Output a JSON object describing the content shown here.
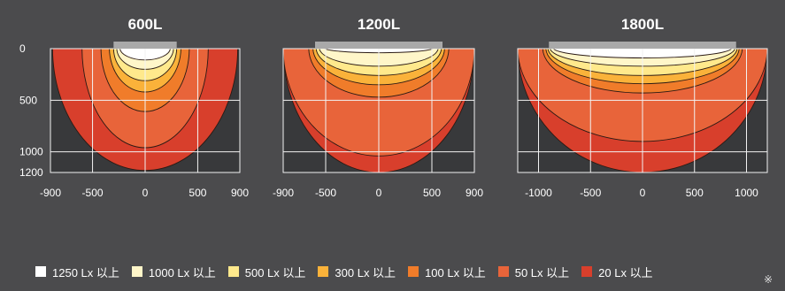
{
  "chart_data": {
    "type": "heatmap",
    "panels": [
      {
        "title": "600L",
        "x_ticks": [
          "-900",
          "-500",
          "0",
          "500",
          "900"
        ],
        "x_values": [
          -900,
          -500,
          0,
          500,
          900
        ],
        "y_ticks": [
          "0",
          "500",
          "1000",
          "1200"
        ],
        "y_values": [
          0,
          500,
          1000,
          1200
        ],
        "xlim": [
          -900,
          900
        ],
        "ylim": [
          0,
          1200
        ],
        "grid": true,
        "luminaire_width": 600,
        "contours": [
          {
            "level": "20 Lx 以上",
            "half_width": 880,
            "depth": 1180
          },
          {
            "level": "50 Lx 以上",
            "half_width": 600,
            "depth": 960
          },
          {
            "level": "100 Lx 以上",
            "half_width": 420,
            "depth": 610
          },
          {
            "level": "300 Lx 以上",
            "half_width": 340,
            "depth": 420
          },
          {
            "level": "500 Lx 以上",
            "half_width": 300,
            "depth": 310
          },
          {
            "level": "1000 Lx 以上",
            "half_width": 270,
            "depth": 200
          },
          {
            "level": "1250 Lx 以上",
            "half_width": 240,
            "depth": 110
          }
        ]
      },
      {
        "title": "1200L",
        "x_ticks": [
          "-900",
          "-500",
          "0",
          "500",
          "900"
        ],
        "x_values": [
          -900,
          -500,
          0,
          500,
          900
        ],
        "xlim": [
          -900,
          900
        ],
        "ylim": [
          0,
          1200
        ],
        "grid": true,
        "luminaire_width": 1200,
        "contours": [
          {
            "level": "20 Lx 以上",
            "half_width": 900,
            "depth": 1200
          },
          {
            "level": "50 Lx 以上",
            "half_width": 900,
            "depth": 1040
          },
          {
            "level": "100 Lx 以上",
            "half_width": 660,
            "depth": 470
          },
          {
            "level": "300 Lx 以上",
            "half_width": 620,
            "depth": 350
          },
          {
            "level": "500 Lx 以上",
            "half_width": 590,
            "depth": 260
          },
          {
            "level": "1000 Lx 以上",
            "half_width": 560,
            "depth": 170
          },
          {
            "level": "1250 Lx 以上",
            "half_width": 520,
            "depth": 40
          }
        ]
      },
      {
        "title": "1800L",
        "x_ticks": [
          "-1000",
          "-500",
          "0",
          "500",
          "1000"
        ],
        "x_values": [
          -1000,
          -500,
          0,
          500,
          1000
        ],
        "xlim": [
          -1200,
          1200
        ],
        "ylim": [
          0,
          1200
        ],
        "grid": true,
        "luminaire_width": 1800,
        "contours": [
          {
            "level": "20 Lx 以上",
            "half_width": 1200,
            "depth": 1200
          },
          {
            "level": "50 Lx 以上",
            "half_width": 1200,
            "depth": 900
          },
          {
            "level": "100 Lx 以上",
            "half_width": 960,
            "depth": 430
          },
          {
            "level": "300 Lx 以上",
            "half_width": 930,
            "depth": 340
          },
          {
            "level": "500 Lx 以上",
            "half_width": 910,
            "depth": 260
          },
          {
            "level": "1000 Lx 以上",
            "half_width": 890,
            "depth": 170
          },
          {
            "level": "1250 Lx 以上",
            "half_width": 860,
            "depth": 90
          }
        ]
      }
    ],
    "legend": [
      {
        "label": "1250 Lx 以上",
        "color": "#ffffff"
      },
      {
        "label": "1000 Lx 以上",
        "color": "#fff6c9"
      },
      {
        "label": "500 Lx 以上",
        "color": "#ffe98c"
      },
      {
        "label": "300 Lx 以上",
        "color": "#fab23a"
      },
      {
        "label": "100 Lx 以上",
        "color": "#f07c2a"
      },
      {
        "label": "50 Lx 以上",
        "color": "#e8643a"
      },
      {
        "label": "20 Lx 以上",
        "color": "#d83f2c"
      }
    ],
    "legend_position": "bottom",
    "note": "※"
  },
  "colors": {
    "background": "#4b4b4d",
    "plot_background": "#38393b",
    "grid": "#f2f2f2",
    "luminaire": "#a9a9a9",
    "contour_line": "#2a1a14"
  }
}
